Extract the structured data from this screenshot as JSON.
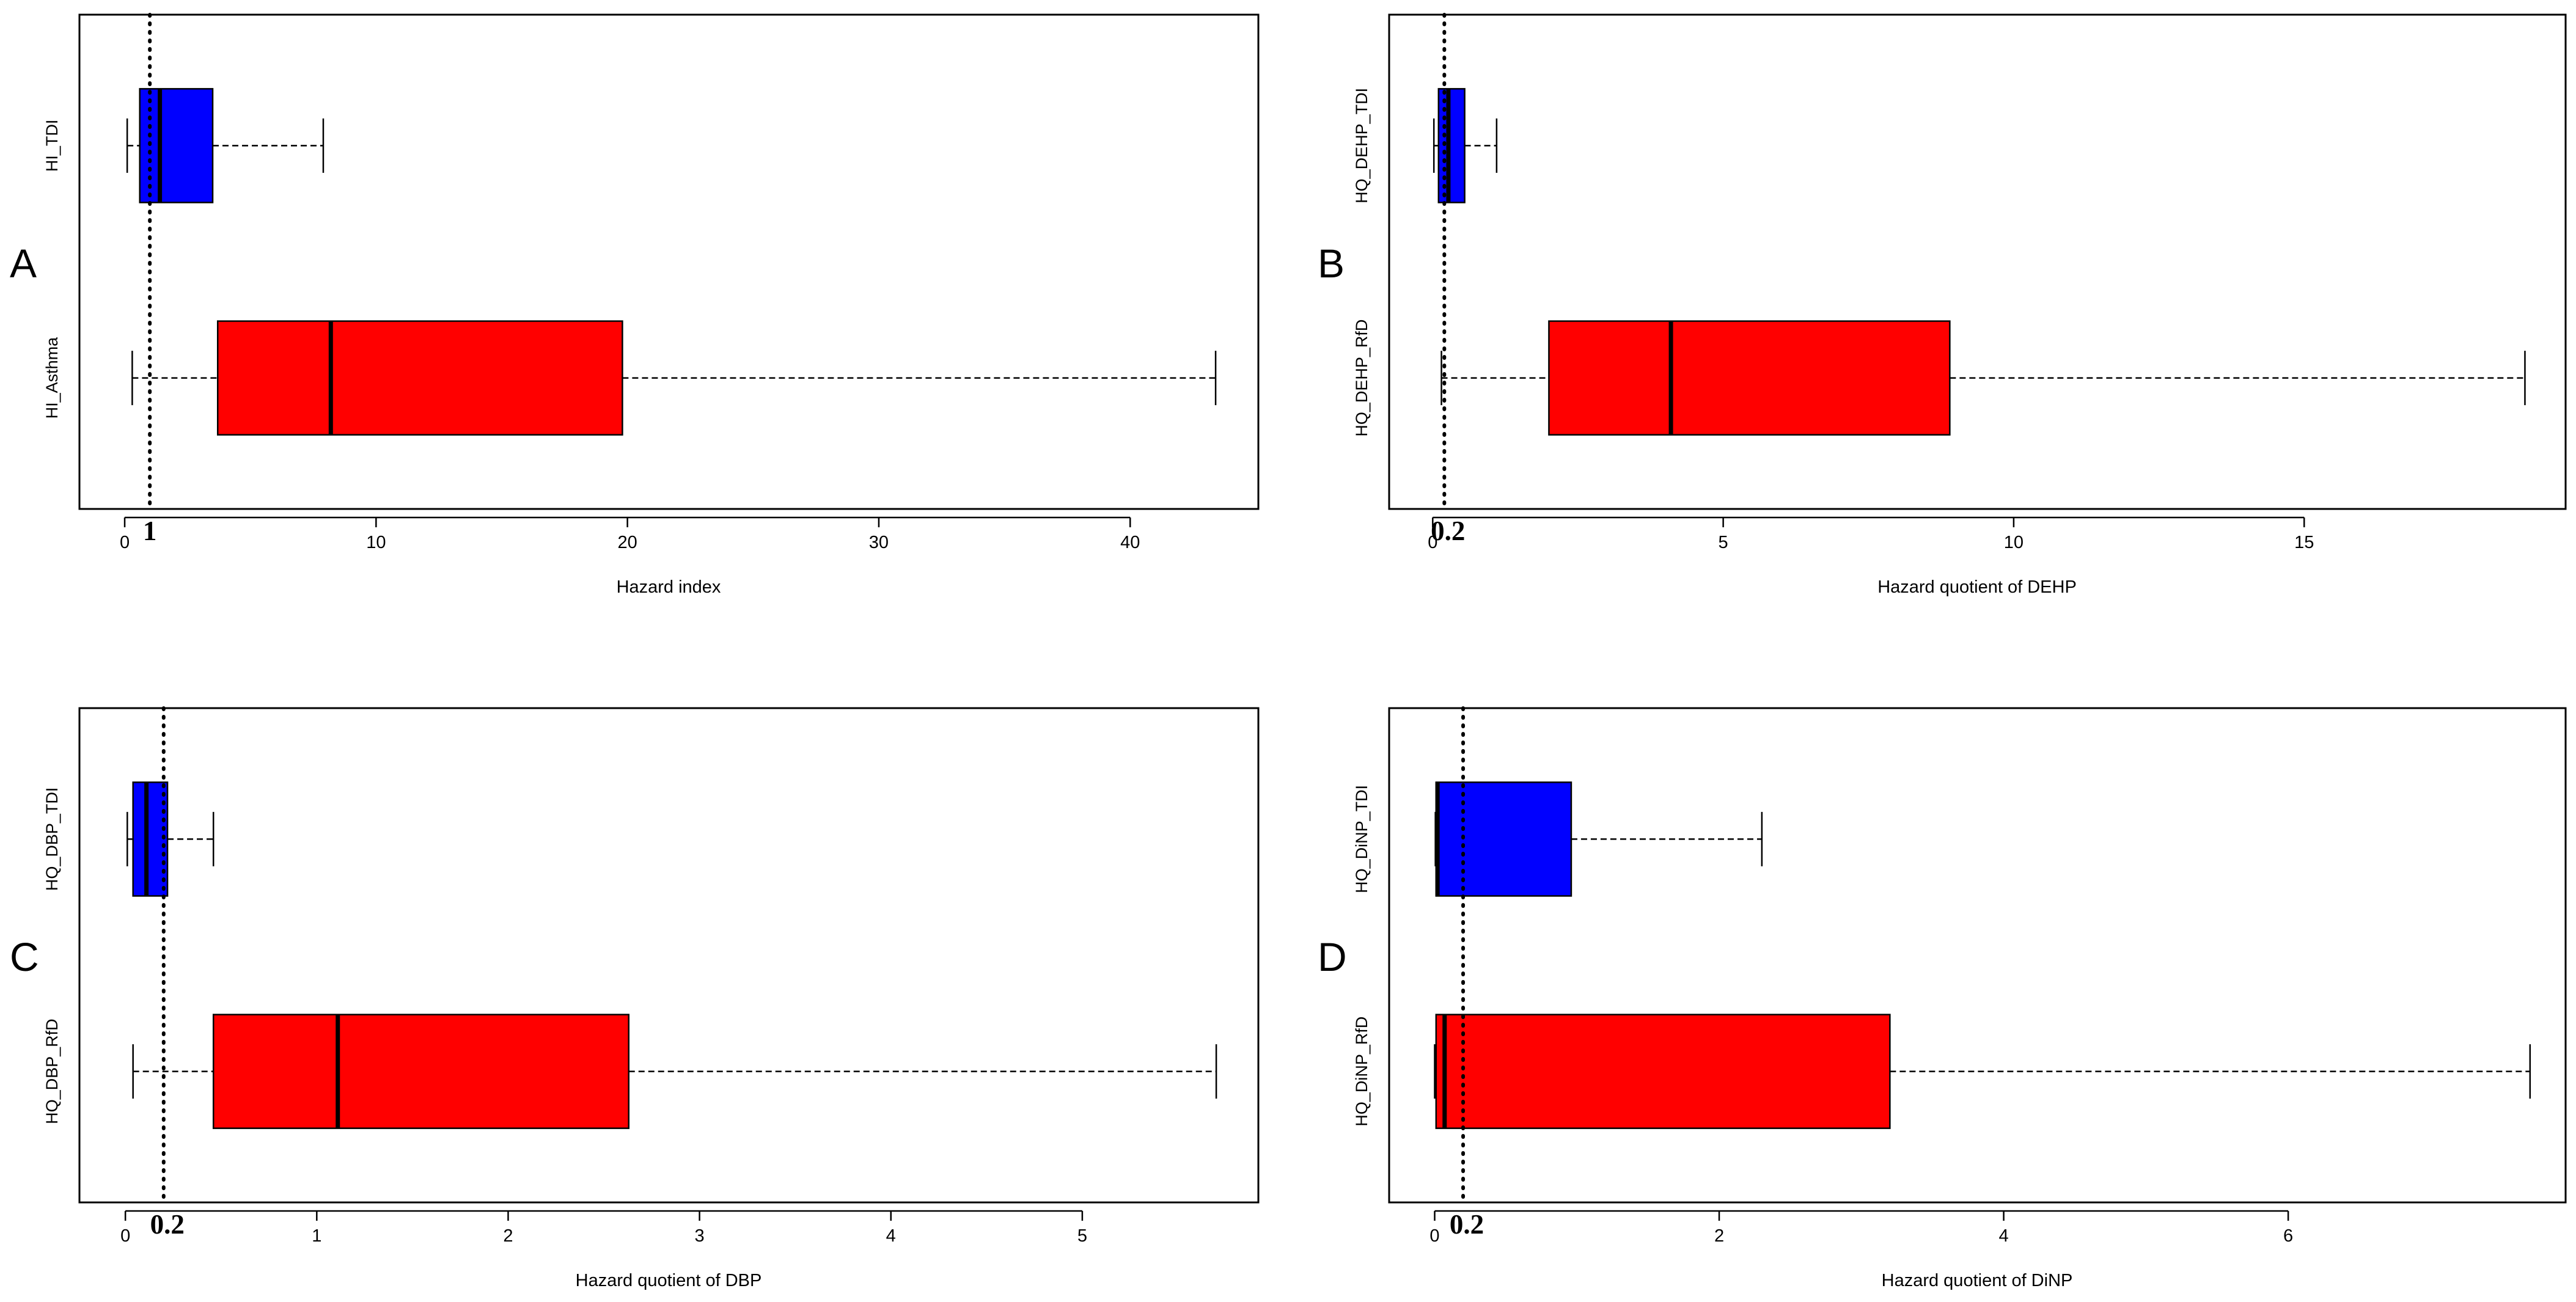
{
  "chart_data": [
    {
      "type": "boxplot",
      "panel": "A",
      "xlabel": "Hazard index",
      "xlim": [
        -1.8,
        45.1
      ],
      "xticks": [
        0,
        10,
        20,
        30,
        40
      ],
      "reference_line": {
        "value": 1,
        "label": "1",
        "style": "dotted"
      },
      "series": [
        {
          "name": "HI_TDI",
          "color": "#0000ff",
          "min": 0.1,
          "q1": 0.6,
          "median": 1.4,
          "q3": 3.5,
          "max": 7.9
        },
        {
          "name": "HI_Asthma",
          "color": "#ff0000",
          "min": 0.3,
          "q1": 3.7,
          "median": 8.2,
          "q3": 19.8,
          "max": 43.4
        }
      ]
    },
    {
      "type": "boxplot",
      "panel": "B",
      "xlabel": "Hazard quotient of DEHP",
      "xlim": [
        -0.75,
        19.5
      ],
      "xticks": [
        0,
        5,
        10,
        15
      ],
      "reference_line": {
        "value": 0.2,
        "label": "0.2",
        "style": "dotted"
      },
      "series": [
        {
          "name": "HQ_DEHP_TDI",
          "color": "#0000ff",
          "min": 0.02,
          "q1": 0.1,
          "median": 0.27,
          "q3": 0.55,
          "max": 1.1
        },
        {
          "name": "HQ_DEHP_RfD",
          "color": "#ff0000",
          "min": 0.15,
          "q1": 2.0,
          "median": 4.1,
          "q3": 8.9,
          "max": 18.8
        }
      ]
    },
    {
      "type": "boxplot",
      "panel": "C",
      "xlabel": "Hazard quotient of DBP",
      "xlim": [
        -0.24,
        5.92
      ],
      "xticks": [
        0,
        1,
        2,
        3,
        4,
        5
      ],
      "reference_line": {
        "value": 0.2,
        "label": "0.2",
        "style": "dotted"
      },
      "series": [
        {
          "name": "HQ_DBP_TDI",
          "color": "#0000ff",
          "min": 0.01,
          "q1": 0.04,
          "median": 0.11,
          "q3": 0.22,
          "max": 0.46
        },
        {
          "name": "HQ_DBP_RfD",
          "color": "#ff0000",
          "min": 0.04,
          "q1": 0.46,
          "median": 1.11,
          "q3": 2.63,
          "max": 5.7
        }
      ]
    },
    {
      "type": "boxplot",
      "panel": "D",
      "xlabel": "Hazard quotient of DiNP",
      "xlim": [
        -0.32,
        7.95
      ],
      "xticks": [
        0,
        2,
        4,
        6
      ],
      "reference_line": {
        "value": 0.2,
        "label": "0.2",
        "style": "dotted"
      },
      "series": [
        {
          "name": "HQ_DiNP_TDI",
          "color": "#0000ff",
          "min": 0.005,
          "q1": 0.01,
          "median": 0.02,
          "q3": 0.96,
          "max": 2.3
        },
        {
          "name": "HQ_DiNP_RfD",
          "color": "#ff0000",
          "min": 0.0,
          "q1": 0.01,
          "median": 0.07,
          "q3": 3.2,
          "max": 7.7
        }
      ]
    }
  ]
}
